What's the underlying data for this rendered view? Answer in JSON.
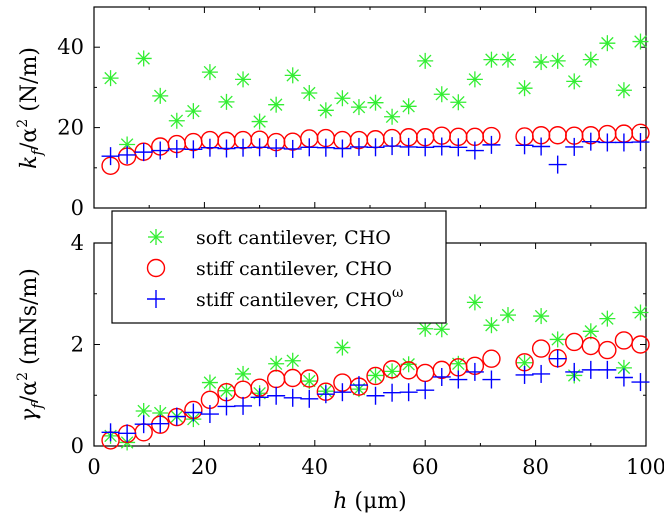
{
  "chart_data": [
    {
      "type": "scatter",
      "ylabel": "k_f/α² (N/m)",
      "xlabel": "",
      "xlim": [
        0,
        100
      ],
      "ylim": [
        0,
        50
      ],
      "xticks": [
        "0",
        "20",
        "40",
        "60",
        "80",
        "100"
      ],
      "yticks": [
        "0",
        "20",
        "40"
      ],
      "series": [
        {
          "name": "soft cantilever, CHO",
          "marker": "asterisk",
          "color": "#33ee33",
          "x": [
            3,
            6,
            9,
            12,
            15,
            18,
            21,
            24,
            27,
            30,
            33,
            36,
            39,
            42,
            45,
            48,
            51,
            54,
            57,
            60,
            63,
            66,
            69,
            72,
            75,
            78,
            81,
            84,
            87,
            90,
            93,
            96,
            99
          ],
          "y": [
            32.3,
            15.8,
            37.2,
            27.9,
            21.7,
            24.1,
            33.8,
            26.4,
            32.0,
            21.5,
            25.7,
            33.0,
            28.6,
            24.3,
            27.3,
            25.1,
            26.2,
            22.7,
            25.3,
            36.6,
            28.3,
            26.3,
            32.0,
            36.9,
            36.9,
            29.8,
            36.3,
            36.6,
            31.5,
            36.9,
            41.0,
            29.3,
            41.4
          ]
        },
        {
          "name": "stiff cantilever, CHO",
          "marker": "circle",
          "color": "#ff0000",
          "x": [
            3,
            6,
            9,
            12,
            15,
            18,
            21,
            24,
            27,
            30,
            33,
            36,
            39,
            42,
            45,
            48,
            51,
            54,
            57,
            60,
            63,
            66,
            69,
            72,
            78,
            81,
            84,
            87,
            90,
            93,
            96,
            99
          ],
          "y": [
            10.5,
            12.8,
            14.0,
            15.3,
            15.9,
            16.4,
            16.9,
            16.7,
            16.9,
            17.0,
            16.4,
            16.5,
            17.3,
            17.4,
            16.9,
            16.9,
            17.1,
            17.4,
            17.6,
            17.6,
            18.0,
            17.7,
            17.7,
            17.9,
            17.8,
            18.1,
            18.1,
            18.0,
            18.1,
            18.4,
            18.5,
            18.7
          ]
        },
        {
          "name": "stiff cantilever, CHOω",
          "marker": "plus",
          "color": "#0000ff",
          "x": [
            3,
            6,
            9,
            12,
            15,
            18,
            21,
            24,
            27,
            30,
            33,
            36,
            39,
            42,
            45,
            48,
            51,
            54,
            57,
            60,
            63,
            66,
            69,
            72,
            78,
            81,
            84,
            87,
            90,
            93,
            96,
            99
          ],
          "y": [
            12.9,
            13.2,
            13.9,
            14.3,
            14.7,
            14.6,
            15.0,
            14.8,
            15.0,
            15.1,
            14.9,
            14.7,
            15.1,
            15.0,
            14.8,
            15.2,
            15.1,
            15.4,
            15.2,
            15.1,
            15.3,
            15.1,
            14.3,
            15.7,
            15.6,
            15.3,
            10.8,
            15.2,
            16.5,
            16.3,
            16.3,
            16.4
          ]
        }
      ]
    },
    {
      "type": "scatter",
      "ylabel": "γ_f/α² (mNs/m)",
      "xlabel": "h (μm)",
      "xlim": [
        0,
        100
      ],
      "ylim": [
        0,
        4
      ],
      "xticks": [
        "0",
        "20",
        "40",
        "60",
        "80",
        "100"
      ],
      "yticks": [
        "0",
        "2",
        "4"
      ],
      "series": [
        {
          "name": "soft cantilever, CHO",
          "marker": "asterisk",
          "color": "#33ee33",
          "x": [
            3,
            6,
            9,
            12,
            15,
            18,
            21,
            24,
            27,
            30,
            33,
            36,
            39,
            42,
            45,
            48,
            51,
            54,
            57,
            60,
            63,
            66,
            69,
            72,
            75,
            78,
            81,
            84,
            87,
            90,
            93,
            96,
            99
          ],
          "y": [
            0.2,
            0.07,
            0.69,
            0.65,
            0.58,
            0.53,
            1.25,
            1.09,
            1.42,
            1.04,
            1.62,
            1.68,
            1.28,
            1.08,
            1.94,
            1.12,
            1.39,
            1.47,
            1.61,
            2.31,
            2.3,
            1.62,
            2.83,
            2.38,
            2.58,
            1.64,
            2.56,
            2.1,
            1.39,
            2.26,
            2.51,
            1.54,
            2.63
          ]
        },
        {
          "name": "stiff cantilever, CHO",
          "marker": "circle",
          "color": "#ff0000",
          "x": [
            3,
            6,
            9,
            12,
            15,
            18,
            21,
            24,
            27,
            30,
            33,
            36,
            39,
            42,
            45,
            48,
            51,
            54,
            57,
            60,
            63,
            66,
            69,
            72,
            78,
            81,
            84,
            87,
            90,
            93,
            96,
            99
          ],
          "y": [
            0.11,
            0.24,
            0.27,
            0.42,
            0.57,
            0.71,
            0.91,
            1.06,
            1.11,
            1.15,
            1.32,
            1.34,
            1.33,
            1.07,
            1.25,
            1.17,
            1.38,
            1.51,
            1.49,
            1.44,
            1.5,
            1.55,
            1.58,
            1.72,
            1.65,
            1.92,
            1.73,
            2.05,
            1.97,
            1.89,
            2.08,
            2.0
          ]
        },
        {
          "name": "stiff cantilever, CHOω",
          "marker": "plus",
          "color": "#0000ff",
          "x": [
            3,
            6,
            9,
            12,
            15,
            18,
            21,
            24,
            27,
            30,
            33,
            36,
            39,
            42,
            45,
            48,
            51,
            54,
            57,
            60,
            63,
            66,
            69,
            72,
            78,
            81,
            84,
            87,
            90,
            93,
            96,
            99
          ],
          "y": [
            0.27,
            0.25,
            0.43,
            0.44,
            0.58,
            0.66,
            0.63,
            0.78,
            0.79,
            0.96,
            0.99,
            0.95,
            0.93,
            1.02,
            1.06,
            1.2,
            0.99,
            1.05,
            1.06,
            1.1,
            1.36,
            1.31,
            1.46,
            1.31,
            1.4,
            1.42,
            1.72,
            1.46,
            1.5,
            1.5,
            1.35,
            1.26
          ]
        }
      ]
    }
  ],
  "legend": {
    "entries": [
      {
        "label": "soft cantilever, CHO"
      },
      {
        "label": "stiff cantilever, CHO"
      },
      {
        "label": "stiff cantilever, CHO",
        "superscript": "ω"
      }
    ]
  },
  "labels": {
    "top_ylabel_main": "k",
    "top_ylabel_sub": "f",
    "top_ylabel_rest": "/α",
    "top_ylabel_sup": "2",
    "top_ylabel_unit": " (N/m)",
    "bottom_ylabel_main": "γ",
    "bottom_ylabel_sub": "f",
    "bottom_ylabel_rest": "/α",
    "bottom_ylabel_sup": "2",
    "bottom_ylabel_unit": " (mNs/m)",
    "xlabel_var": "h",
    "xlabel_unit": " (μm)"
  }
}
